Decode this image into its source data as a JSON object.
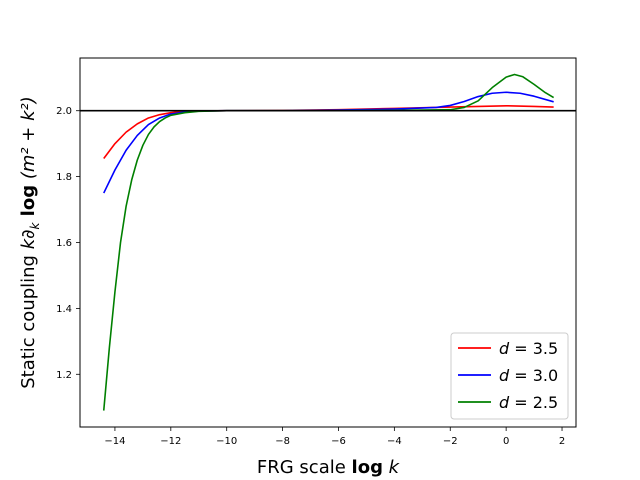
{
  "chart_data": {
    "type": "line",
    "title": "",
    "xlabel": "FRG scale log k",
    "ylabel": "Static coupling k∂_k log (m^2 + k^2)",
    "xlabel_parts": {
      "plain": "FRG scale ",
      "bold": "log",
      "italic": " k"
    },
    "ylabel_parts": {
      "plain": "Static coupling ",
      "k_italic": "k",
      "partial": "∂",
      "sub": "k",
      "bold": " log",
      "rest": " (m² + k²)"
    },
    "xlim": [
      -15.25,
      2.5
    ],
    "ylim": [
      1.04,
      2.16
    ],
    "xticks": [
      -14,
      -12,
      -10,
      -8,
      -6,
      -4,
      -2,
      0,
      2
    ],
    "yticks": [
      1.2,
      1.4,
      1.6,
      1.8,
      2.0
    ],
    "xtick_labels": [
      "−14",
      "−12",
      "−10",
      "−8",
      "−6",
      "−4",
      "−2",
      "0",
      "2"
    ],
    "ytick_labels": [
      "1.2",
      "1.4",
      "1.6",
      "1.8",
      "2.0"
    ],
    "grid": false,
    "reference_line": {
      "y": 2.0,
      "color": "#000000"
    },
    "legend": {
      "placement": "lower-right"
    },
    "series": [
      {
        "name": "d = 3.5",
        "label_var": "d",
        "label_value": "3.5",
        "color": "#ff0000",
        "x": [
          -14.4,
          -14.0,
          -13.6,
          -13.2,
          -12.8,
          -12.4,
          -12.0,
          -11.5,
          -11.0,
          -10.0,
          -8.0,
          -6.0,
          -4.0,
          -2.0,
          -1.0,
          0.0,
          1.0,
          1.7
        ],
        "y": [
          1.855,
          1.9,
          1.935,
          1.96,
          1.978,
          1.988,
          1.994,
          1.998,
          1.999,
          2.0,
          2.001,
          2.003,
          2.007,
          2.011,
          2.013,
          2.015,
          2.013,
          2.011
        ]
      },
      {
        "name": "d = 3.0",
        "label_var": "d",
        "label_value": "3.0",
        "color": "#0000ff",
        "x": [
          -14.4,
          -14.0,
          -13.6,
          -13.2,
          -12.8,
          -12.4,
          -12.0,
          -11.5,
          -11.0,
          -10.0,
          -8.0,
          -6.0,
          -4.0,
          -2.5,
          -2.0,
          -1.5,
          -1.0,
          -0.5,
          0.0,
          0.5,
          1.0,
          1.7
        ],
        "y": [
          1.75,
          1.82,
          1.88,
          1.925,
          1.958,
          1.978,
          1.99,
          1.996,
          1.999,
          2.0,
          2.0,
          2.002,
          2.005,
          2.01,
          2.016,
          2.028,
          2.043,
          2.053,
          2.056,
          2.053,
          2.044,
          2.027
        ]
      },
      {
        "name": "d = 2.5",
        "label_var": "d",
        "label_value": "2.5",
        "color": "#008000",
        "x": [
          -14.4,
          -14.2,
          -14.0,
          -13.8,
          -13.6,
          -13.4,
          -13.2,
          -13.0,
          -12.8,
          -12.6,
          -12.4,
          -12.2,
          -12.0,
          -11.5,
          -11.0,
          -10.0,
          -8.0,
          -6.0,
          -4.0,
          -2.0,
          -1.5,
          -1.0,
          -0.5,
          0.0,
          0.3,
          0.6,
          1.0,
          1.4,
          1.7
        ],
        "y": [
          1.09,
          1.28,
          1.45,
          1.6,
          1.71,
          1.79,
          1.85,
          1.895,
          1.928,
          1.951,
          1.967,
          1.978,
          1.986,
          1.994,
          1.998,
          2.0,
          2.0,
          2.0,
          2.001,
          2.003,
          2.01,
          2.03,
          2.07,
          2.102,
          2.11,
          2.103,
          2.08,
          2.055,
          2.04
        ]
      }
    ]
  }
}
